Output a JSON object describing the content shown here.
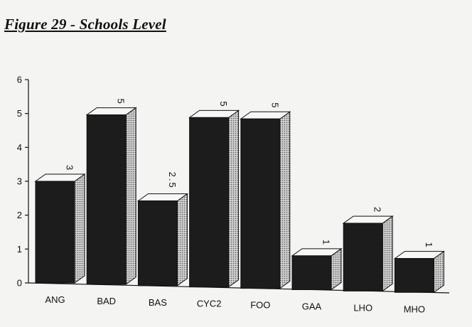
{
  "figure": {
    "title": "Figure 29 - Schools Level"
  },
  "chart_data": {
    "type": "bar",
    "title": "",
    "xlabel": "",
    "ylabel": "",
    "categories": [
      "ANG",
      "BAD",
      "BAS",
      "CYC2",
      "FOO",
      "GAA",
      "LHO",
      "MHO"
    ],
    "values": [
      3,
      5,
      2.5,
      5,
      5,
      1,
      2,
      1
    ],
    "data_labels": [
      "3",
      "5",
      "2.5",
      "5",
      "5",
      "1",
      "2",
      "1"
    ],
    "y_ticks": [
      "0",
      "1",
      "2",
      "3",
      "4",
      "5",
      "6"
    ],
    "ylim": [
      0,
      6
    ],
    "grid": false,
    "legend": "none",
    "style": "3d-bars",
    "colors": {
      "bar_front": "#1c1c1c",
      "bar_top": "#f7f7f5",
      "bar_side": "#bdbdbd",
      "axis": "#111111"
    }
  }
}
